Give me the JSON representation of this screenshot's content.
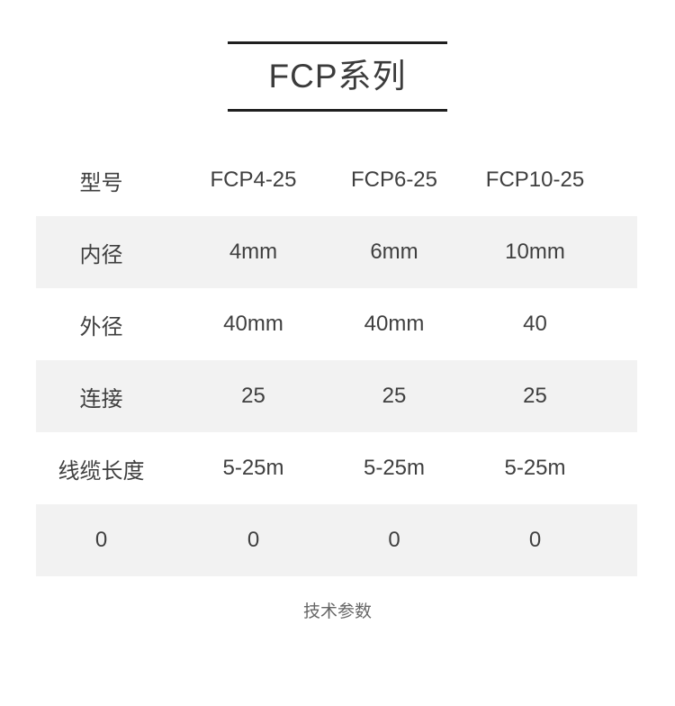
{
  "title": "FCP系列",
  "table": {
    "header": [
      "型号",
      "FCP4-25",
      "FCP6-25",
      "FCP10-25"
    ],
    "rows": [
      {
        "label": "内径",
        "values": [
          "4mm",
          "6mm",
          "10mm"
        ]
      },
      {
        "label": "外径",
        "values": [
          "40mm",
          "40mm",
          "40"
        ]
      },
      {
        "label": "连接",
        "values": [
          "25",
          "25",
          "25"
        ]
      },
      {
        "label": "线缆长度",
        "values": [
          "5-25m",
          "5-25m",
          "5-25m"
        ]
      },
      {
        "label": "0",
        "values": [
          "0",
          "0",
          "0"
        ]
      }
    ]
  },
  "footer": {
    "caption": "技术参数"
  },
  "colors": {
    "stripe": "#f2f2f2",
    "rule": "#1f1f1f",
    "title_text": "#3b3b3b",
    "table_text": "#3f3f3f",
    "caption_text": "#666666"
  }
}
